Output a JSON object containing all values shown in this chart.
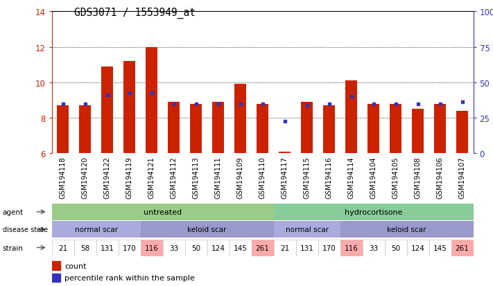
{
  "title": "GDS3071 / 1553949_at",
  "samples": [
    "GSM194118",
    "GSM194120",
    "GSM194122",
    "GSM194119",
    "GSM194121",
    "GSM194112",
    "GSM194113",
    "GSM194111",
    "GSM194109",
    "GSM194110",
    "GSM194117",
    "GSM194115",
    "GSM194116",
    "GSM194114",
    "GSM194104",
    "GSM194105",
    "GSM194108",
    "GSM194106",
    "GSM194107"
  ],
  "bar_values": [
    8.7,
    8.7,
    10.9,
    11.2,
    12.0,
    8.9,
    8.8,
    8.9,
    9.9,
    8.8,
    6.1,
    8.9,
    8.7,
    10.1,
    8.8,
    8.8,
    8.5,
    8.8,
    8.4
  ],
  "blue_values": [
    8.8,
    8.8,
    9.3,
    9.4,
    9.4,
    8.8,
    8.8,
    8.8,
    8.8,
    8.8,
    7.8,
    8.7,
    8.8,
    9.2,
    8.8,
    8.8,
    8.8,
    8.8,
    8.9
  ],
  "ymin": 6,
  "ymax": 14,
  "yticks_left": [
    6,
    8,
    10,
    12,
    14
  ],
  "bar_color": "#cc2200",
  "blue_color": "#3333bb",
  "bar_bottom": 6,
  "agent_groups": [
    {
      "label": "untreated",
      "start": 0,
      "end": 10,
      "color": "#99cc88"
    },
    {
      "label": "hydrocortisone",
      "start": 10,
      "end": 19,
      "color": "#88cc99"
    }
  ],
  "disease_groups": [
    {
      "label": "normal scar",
      "start": 0,
      "end": 4,
      "color": "#aaaadd"
    },
    {
      "label": "keloid scar",
      "start": 4,
      "end": 10,
      "color": "#9999cc"
    },
    {
      "label": "normal scar",
      "start": 10,
      "end": 13,
      "color": "#aaaadd"
    },
    {
      "label": "keloid scar",
      "start": 13,
      "end": 19,
      "color": "#9999cc"
    }
  ],
  "strain_values": [
    "21",
    "58",
    "131",
    "170",
    "116",
    "33",
    "50",
    "124",
    "145",
    "261",
    "21",
    "131",
    "170",
    "116",
    "33",
    "50",
    "124",
    "145",
    "261"
  ],
  "strain_highlighted": [
    4,
    9,
    13,
    18
  ],
  "strain_highlight_color": "#ffaaaa",
  "strain_normal_color": "#ffffff",
  "legend_count_color": "#cc2200",
  "legend_percentile_color": "#3333bb",
  "xlabel_bg_color": "#dddddd"
}
